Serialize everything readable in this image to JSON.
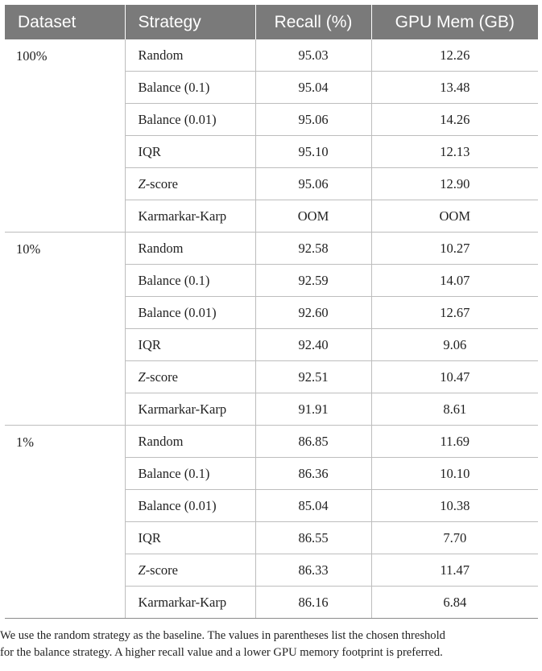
{
  "table": {
    "headers": [
      "Dataset",
      "Strategy",
      "Recall (%)",
      "GPU Mem (GB)"
    ],
    "groups": [
      {
        "dataset": "100%",
        "rows": [
          {
            "strategy": "Random",
            "recall": "95.03",
            "gpu_mem": "12.26"
          },
          {
            "strategy": "Balance (0.1)",
            "recall": "95.04",
            "gpu_mem": "13.48"
          },
          {
            "strategy": "Balance (0.01)",
            "recall": "95.06",
            "gpu_mem": "14.26"
          },
          {
            "strategy": "IQR",
            "recall": "95.10",
            "gpu_mem": "12.13"
          },
          {
            "strategy_prefix": "Z",
            "strategy_suffix": "-score",
            "recall": "95.06",
            "gpu_mem": "12.90"
          },
          {
            "strategy": "Karmarkar-Karp",
            "recall": "OOM",
            "gpu_mem": "OOM"
          }
        ]
      },
      {
        "dataset": "10%",
        "rows": [
          {
            "strategy": "Random",
            "recall": "92.58",
            "gpu_mem": "10.27"
          },
          {
            "strategy": "Balance (0.1)",
            "recall": "92.59",
            "gpu_mem": "14.07"
          },
          {
            "strategy": "Balance (0.01)",
            "recall": "92.60",
            "gpu_mem": "12.67"
          },
          {
            "strategy": "IQR",
            "recall": "92.40",
            "gpu_mem": "9.06"
          },
          {
            "strategy_prefix": "Z",
            "strategy_suffix": "-score",
            "recall": "92.51",
            "gpu_mem": "10.47"
          },
          {
            "strategy": "Karmarkar-Karp",
            "recall": "91.91",
            "gpu_mem": "8.61"
          }
        ]
      },
      {
        "dataset": "1%",
        "rows": [
          {
            "strategy": "Random",
            "recall": "86.85",
            "gpu_mem": "11.69"
          },
          {
            "strategy": "Balance (0.1)",
            "recall": "86.36",
            "gpu_mem": "10.10"
          },
          {
            "strategy": "Balance (0.01)",
            "recall": "85.04",
            "gpu_mem": "10.38"
          },
          {
            "strategy": "IQR",
            "recall": "86.55",
            "gpu_mem": "7.70"
          },
          {
            "strategy_prefix": "Z",
            "strategy_suffix": "-score",
            "recall": "86.33",
            "gpu_mem": "11.47"
          },
          {
            "strategy": "Karmarkar-Karp",
            "recall": "86.16",
            "gpu_mem": "6.84"
          }
        ]
      }
    ]
  },
  "footnote": {
    "line1": "We use the random strategy as the baseline. The values in parentheses list the chosen threshold",
    "line2": "for the balance strategy. A higher recall value and a lower GPU memory footprint is preferred."
  }
}
